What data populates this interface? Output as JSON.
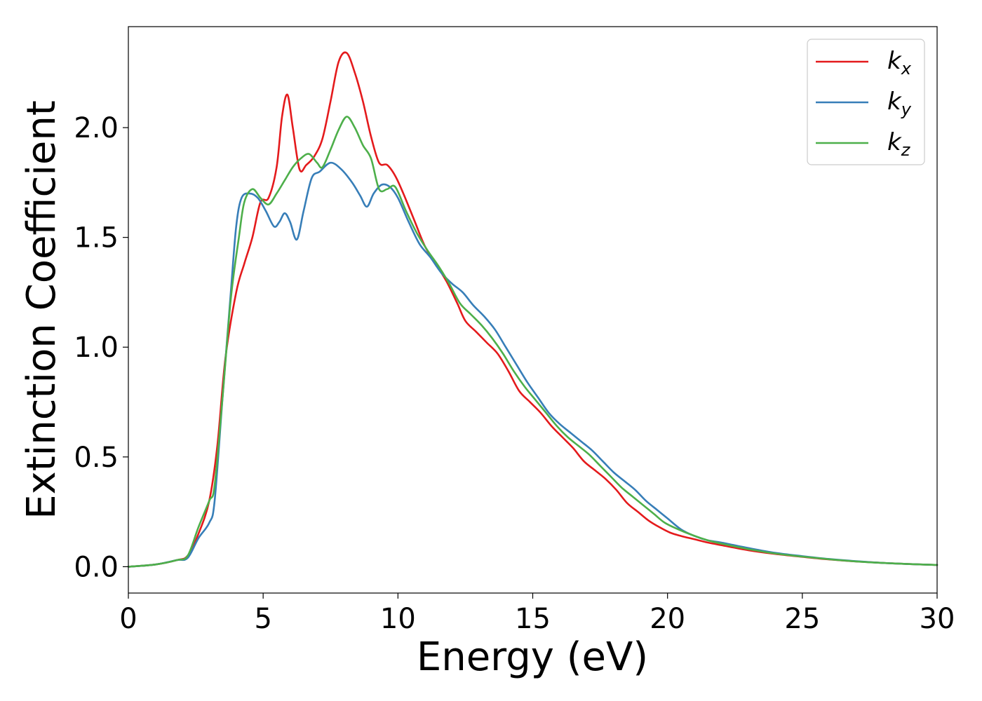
{
  "chart_data": {
    "type": "line",
    "xlabel": "Energy (eV)",
    "ylabel": "Extinction Coefficient",
    "xlim": [
      0,
      30
    ],
    "ylim": [
      -0.12,
      2.46
    ],
    "xticks": [
      0,
      5,
      10,
      15,
      20,
      25,
      30
    ],
    "xtick_labels": [
      "0",
      "5",
      "10",
      "15",
      "20",
      "25",
      "30"
    ],
    "yticks": [
      0.0,
      0.5,
      1.0,
      1.5,
      2.0
    ],
    "ytick_labels": [
      "0.0",
      "0.5",
      "1.0",
      "1.5",
      "2.0"
    ],
    "grid": false,
    "legend_position": "top-right",
    "series": [
      {
        "name": "k",
        "subscript": "x",
        "color": "#e41a1c",
        "points": [
          [
            0,
            0.0
          ],
          [
            1,
            0.01
          ],
          [
            1.8,
            0.03
          ],
          [
            2.2,
            0.05
          ],
          [
            2.6,
            0.15
          ],
          [
            3.0,
            0.3
          ],
          [
            3.3,
            0.55
          ],
          [
            3.6,
            0.95
          ],
          [
            4.0,
            1.25
          ],
          [
            4.3,
            1.38
          ],
          [
            4.6,
            1.5
          ],
          [
            4.9,
            1.66
          ],
          [
            5.2,
            1.68
          ],
          [
            5.5,
            1.82
          ],
          [
            5.7,
            2.05
          ],
          [
            5.9,
            2.15
          ],
          [
            6.1,
            2.0
          ],
          [
            6.35,
            1.81
          ],
          [
            6.6,
            1.83
          ],
          [
            6.9,
            1.87
          ],
          [
            7.2,
            1.95
          ],
          [
            7.5,
            2.12
          ],
          [
            7.8,
            2.3
          ],
          [
            8.1,
            2.34
          ],
          [
            8.4,
            2.25
          ],
          [
            8.7,
            2.12
          ],
          [
            9.0,
            1.96
          ],
          [
            9.3,
            1.84
          ],
          [
            9.6,
            1.83
          ],
          [
            9.9,
            1.78
          ],
          [
            10.2,
            1.7
          ],
          [
            10.6,
            1.58
          ],
          [
            11.0,
            1.46
          ],
          [
            11.4,
            1.38
          ],
          [
            11.8,
            1.3
          ],
          [
            12.2,
            1.2
          ],
          [
            12.5,
            1.12
          ],
          [
            12.9,
            1.07
          ],
          [
            13.3,
            1.02
          ],
          [
            13.7,
            0.97
          ],
          [
            14.1,
            0.89
          ],
          [
            14.5,
            0.8
          ],
          [
            14.9,
            0.75
          ],
          [
            15.3,
            0.7
          ],
          [
            15.7,
            0.64
          ],
          [
            16.1,
            0.59
          ],
          [
            16.5,
            0.54
          ],
          [
            16.9,
            0.48
          ],
          [
            17.3,
            0.44
          ],
          [
            17.7,
            0.4
          ],
          [
            18.1,
            0.35
          ],
          [
            18.5,
            0.29
          ],
          [
            18.9,
            0.25
          ],
          [
            19.3,
            0.21
          ],
          [
            19.7,
            0.18
          ],
          [
            20.1,
            0.155
          ],
          [
            20.5,
            0.14
          ],
          [
            21.0,
            0.125
          ],
          [
            21.5,
            0.11
          ],
          [
            22,
            0.098
          ],
          [
            23,
            0.075
          ],
          [
            24,
            0.058
          ],
          [
            25,
            0.045
          ],
          [
            26,
            0.033
          ],
          [
            27,
            0.024
          ],
          [
            28,
            0.017
          ],
          [
            29,
            0.012
          ],
          [
            30,
            0.008
          ]
        ]
      },
      {
        "name": "k",
        "subscript": "y",
        "color": "#377eb8",
        "points": [
          [
            0,
            0.0
          ],
          [
            1,
            0.01
          ],
          [
            1.8,
            0.03
          ],
          [
            2.2,
            0.04
          ],
          [
            2.6,
            0.13
          ],
          [
            3.0,
            0.2
          ],
          [
            3.2,
            0.3
          ],
          [
            3.5,
            0.78
          ],
          [
            3.8,
            1.25
          ],
          [
            4.0,
            1.55
          ],
          [
            4.2,
            1.68
          ],
          [
            4.5,
            1.7
          ],
          [
            4.8,
            1.68
          ],
          [
            5.1,
            1.62
          ],
          [
            5.4,
            1.55
          ],
          [
            5.6,
            1.57
          ],
          [
            5.8,
            1.61
          ],
          [
            6.0,
            1.57
          ],
          [
            6.25,
            1.49
          ],
          [
            6.5,
            1.62
          ],
          [
            6.8,
            1.77
          ],
          [
            7.1,
            1.8
          ],
          [
            7.5,
            1.84
          ],
          [
            7.9,
            1.81
          ],
          [
            8.3,
            1.75
          ],
          [
            8.6,
            1.69
          ],
          [
            8.85,
            1.64
          ],
          [
            9.1,
            1.7
          ],
          [
            9.4,
            1.74
          ],
          [
            9.7,
            1.73
          ],
          [
            10.0,
            1.68
          ],
          [
            10.4,
            1.57
          ],
          [
            10.8,
            1.47
          ],
          [
            11.2,
            1.41
          ],
          [
            11.6,
            1.34
          ],
          [
            12.0,
            1.29
          ],
          [
            12.4,
            1.25
          ],
          [
            12.8,
            1.19
          ],
          [
            13.2,
            1.14
          ],
          [
            13.6,
            1.08
          ],
          [
            14.0,
            1.0
          ],
          [
            14.4,
            0.92
          ],
          [
            14.8,
            0.84
          ],
          [
            15.2,
            0.77
          ],
          [
            15.6,
            0.7
          ],
          [
            16.0,
            0.65
          ],
          [
            16.4,
            0.61
          ],
          [
            16.8,
            0.57
          ],
          [
            17.2,
            0.53
          ],
          [
            17.6,
            0.48
          ],
          [
            18.0,
            0.43
          ],
          [
            18.4,
            0.39
          ],
          [
            18.8,
            0.35
          ],
          [
            19.2,
            0.3
          ],
          [
            19.6,
            0.26
          ],
          [
            20.0,
            0.22
          ],
          [
            20.5,
            0.17
          ],
          [
            21.0,
            0.14
          ],
          [
            21.5,
            0.12
          ],
          [
            22,
            0.11
          ],
          [
            23,
            0.085
          ],
          [
            24,
            0.063
          ],
          [
            25,
            0.048
          ],
          [
            26,
            0.035
          ],
          [
            27,
            0.025
          ],
          [
            28,
            0.017
          ],
          [
            29,
            0.012
          ],
          [
            30,
            0.008
          ]
        ]
      },
      {
        "name": "k",
        "subscript": "z",
        "color": "#4daf4a",
        "points": [
          [
            0,
            0.0
          ],
          [
            1,
            0.01
          ],
          [
            1.8,
            0.03
          ],
          [
            2.2,
            0.05
          ],
          [
            2.6,
            0.18
          ],
          [
            3.0,
            0.3
          ],
          [
            3.2,
            0.37
          ],
          [
            3.5,
            0.78
          ],
          [
            3.8,
            1.22
          ],
          [
            4.1,
            1.5
          ],
          [
            4.3,
            1.66
          ],
          [
            4.6,
            1.72
          ],
          [
            4.9,
            1.68
          ],
          [
            5.2,
            1.65
          ],
          [
            5.5,
            1.7
          ],
          [
            5.8,
            1.76
          ],
          [
            6.1,
            1.82
          ],
          [
            6.4,
            1.86
          ],
          [
            6.7,
            1.88
          ],
          [
            7.0,
            1.84
          ],
          [
            7.2,
            1.82
          ],
          [
            7.5,
            1.9
          ],
          [
            7.8,
            1.99
          ],
          [
            8.1,
            2.05
          ],
          [
            8.4,
            2.0
          ],
          [
            8.7,
            1.92
          ],
          [
            9.0,
            1.86
          ],
          [
            9.3,
            1.72
          ],
          [
            9.6,
            1.72
          ],
          [
            9.9,
            1.73
          ],
          [
            10.3,
            1.62
          ],
          [
            10.7,
            1.52
          ],
          [
            11.1,
            1.44
          ],
          [
            11.5,
            1.37
          ],
          [
            11.9,
            1.29
          ],
          [
            12.3,
            1.2
          ],
          [
            12.7,
            1.15
          ],
          [
            13.1,
            1.1
          ],
          [
            13.5,
            1.04
          ],
          [
            13.9,
            0.97
          ],
          [
            14.3,
            0.89
          ],
          [
            14.7,
            0.82
          ],
          [
            15.1,
            0.76
          ],
          [
            15.5,
            0.7
          ],
          [
            15.9,
            0.64
          ],
          [
            16.3,
            0.59
          ],
          [
            16.7,
            0.55
          ],
          [
            17.1,
            0.51
          ],
          [
            17.5,
            0.46
          ],
          [
            17.9,
            0.41
          ],
          [
            18.3,
            0.36
          ],
          [
            18.7,
            0.32
          ],
          [
            19.1,
            0.28
          ],
          [
            19.5,
            0.24
          ],
          [
            19.9,
            0.2
          ],
          [
            20.4,
            0.17
          ],
          [
            20.9,
            0.145
          ],
          [
            21.5,
            0.12
          ],
          [
            22,
            0.105
          ],
          [
            23,
            0.08
          ],
          [
            24,
            0.06
          ],
          [
            25,
            0.046
          ],
          [
            26,
            0.034
          ],
          [
            27,
            0.024
          ],
          [
            28,
            0.017
          ],
          [
            29,
            0.012
          ],
          [
            30,
            0.008
          ]
        ]
      }
    ]
  }
}
